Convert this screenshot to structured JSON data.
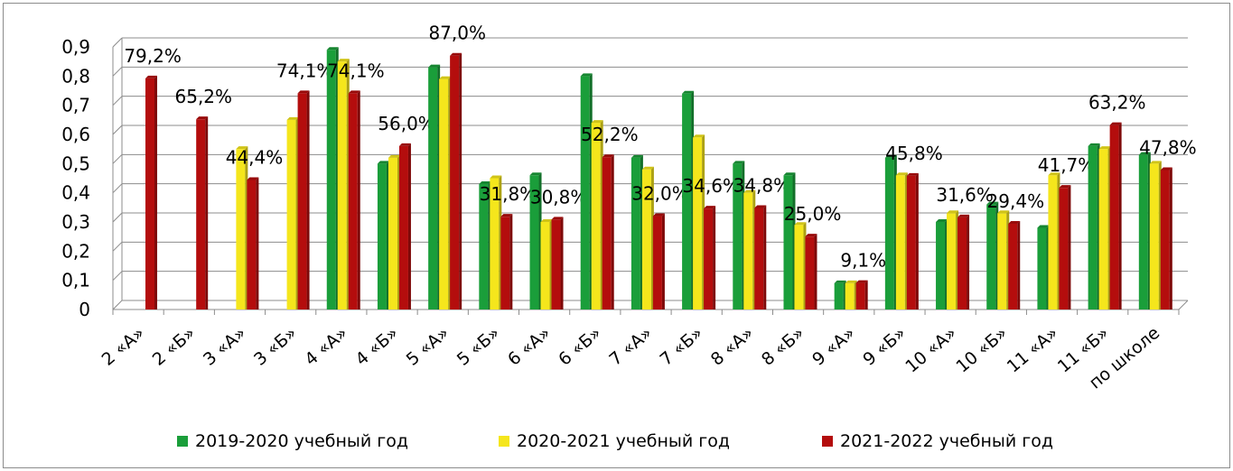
{
  "chart_data": {
    "type": "bar",
    "categories": [
      "2 «А»",
      "2 «Б»",
      "3 «А»",
      "3 «Б»",
      "4 «А»",
      "4 «Б»",
      "5 «А»",
      "5 «Б»",
      "6 «А»",
      "6 «Б»",
      "7 «А»",
      "7 «Б»",
      "8 «А»",
      "8 «Б»",
      "9 «А»",
      "9 «Б»",
      "10 «А»",
      "10 «Б»",
      "11 «А»",
      "11 «Б»",
      "по школе"
    ],
    "series": [
      {
        "name": "2019-2020 учебный год",
        "color": "#1a9e3a",
        "values": [
          null,
          null,
          null,
          null,
          0.89,
          0.5,
          0.83,
          0.43,
          0.46,
          0.8,
          0.52,
          0.74,
          0.5,
          0.46,
          0.09,
          0.52,
          0.3,
          0.36,
          0.28,
          0.56,
          0.53
        ]
      },
      {
        "name": "2020-2021 учебный год",
        "color": "#f5e61c",
        "values": [
          null,
          null,
          0.55,
          0.65,
          0.85,
          0.52,
          0.79,
          0.45,
          0.3,
          0.64,
          0.48,
          0.59,
          0.4,
          0.29,
          0.09,
          0.46,
          0.33,
          0.33,
          0.46,
          0.55,
          0.5
        ]
      },
      {
        "name": "2021-2022 учебный год",
        "color": "#b40d0d",
        "values": [
          0.792,
          0.652,
          0.444,
          0.741,
          0.741,
          0.56,
          0.87,
          0.318,
          0.308,
          0.522,
          0.32,
          0.346,
          0.348,
          0.25,
          0.091,
          0.458,
          0.316,
          0.294,
          0.417,
          0.632,
          0.478
        ]
      }
    ],
    "data_labels": [
      "79,2%",
      "65,2%",
      "44,4%",
      "74,1%",
      "74,1%",
      "56,0%",
      "87,0%",
      "31,8%",
      "30,8%",
      "52,2%",
      "32,0%",
      "34,6%",
      "34,8%",
      "25,0%",
      "9,1%",
      "45,8%",
      "31,6%",
      "29,4%",
      "41,7%",
      "63,2%",
      "47,8%"
    ],
    "y_ticks": [
      "0",
      "0,1",
      "0,2",
      "0,3",
      "0,4",
      "0,5",
      "0,6",
      "0,7",
      "0,8",
      "0,9"
    ],
    "ylim": [
      0,
      0.9
    ],
    "grid": true,
    "legend_position": "bottom",
    "title": "",
    "xlabel": "",
    "ylabel": ""
  }
}
